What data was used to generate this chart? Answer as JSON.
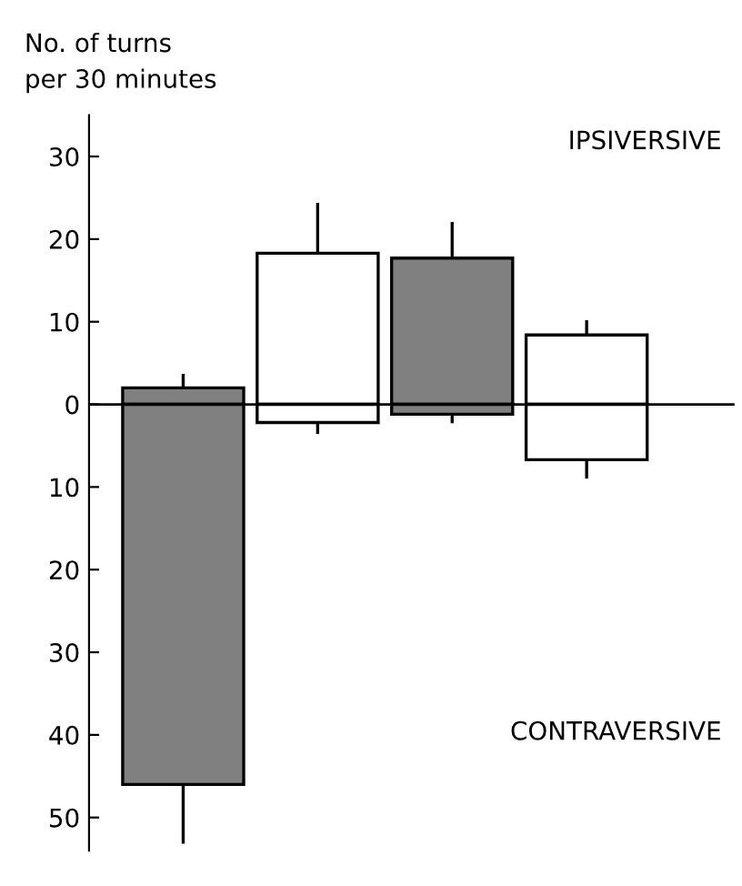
{
  "chart_data": {
    "type": "bar",
    "stacked": true,
    "ylabel": "No. of turns\nper 30 minutes",
    "categories": [
      null,
      null,
      null,
      null
    ],
    "series": [
      {
        "colors": [
          "#808080",
          "#ffffff",
          "#808080",
          "#ffffff"
        ],
        "values": [
          2,
          18.3,
          17.7,
          8.4
        ],
        "errors": [
          [
            2,
            3.5
          ],
          [
            18.3,
            24.2
          ],
          [
            17.7,
            21.9
          ],
          [
            8.4,
            10
          ]
        ]
      },
      {
        "colors": [
          "#808080",
          "#ffffff",
          "#808080",
          "#ffffff"
        ],
        "values": [
          -46,
          -2.2,
          -1.2,
          -6.7
        ],
        "errors": [
          [
            -53,
            -46
          ],
          [
            -3.4,
            -2.2
          ],
          [
            -2.1,
            -1.2
          ],
          [
            -8.8,
            -6.7
          ]
        ]
      }
    ],
    "ylim": [
      -54,
      35
    ],
    "yticks": [
      {
        "value": 30,
        "label": "30"
      },
      {
        "value": 20,
        "label": "20"
      },
      {
        "value": 10,
        "label": "10"
      },
      {
        "value": 0,
        "label": "0"
      },
      {
        "value": -10,
        "label": "10"
      },
      {
        "value": -20,
        "label": "20"
      },
      {
        "value": -30,
        "label": "30"
      },
      {
        "value": -40,
        "label": "40"
      },
      {
        "value": -50,
        "label": "50"
      }
    ],
    "tick_labels": "y",
    "ref_lines": [
      {
        "axis": "y",
        "value": 0,
        "color": "#000000"
      }
    ],
    "annotations": [
      "IPSIVERSIVE",
      "CONTRAVERSIVE"
    ],
    "grid": false,
    "legend": false
  }
}
